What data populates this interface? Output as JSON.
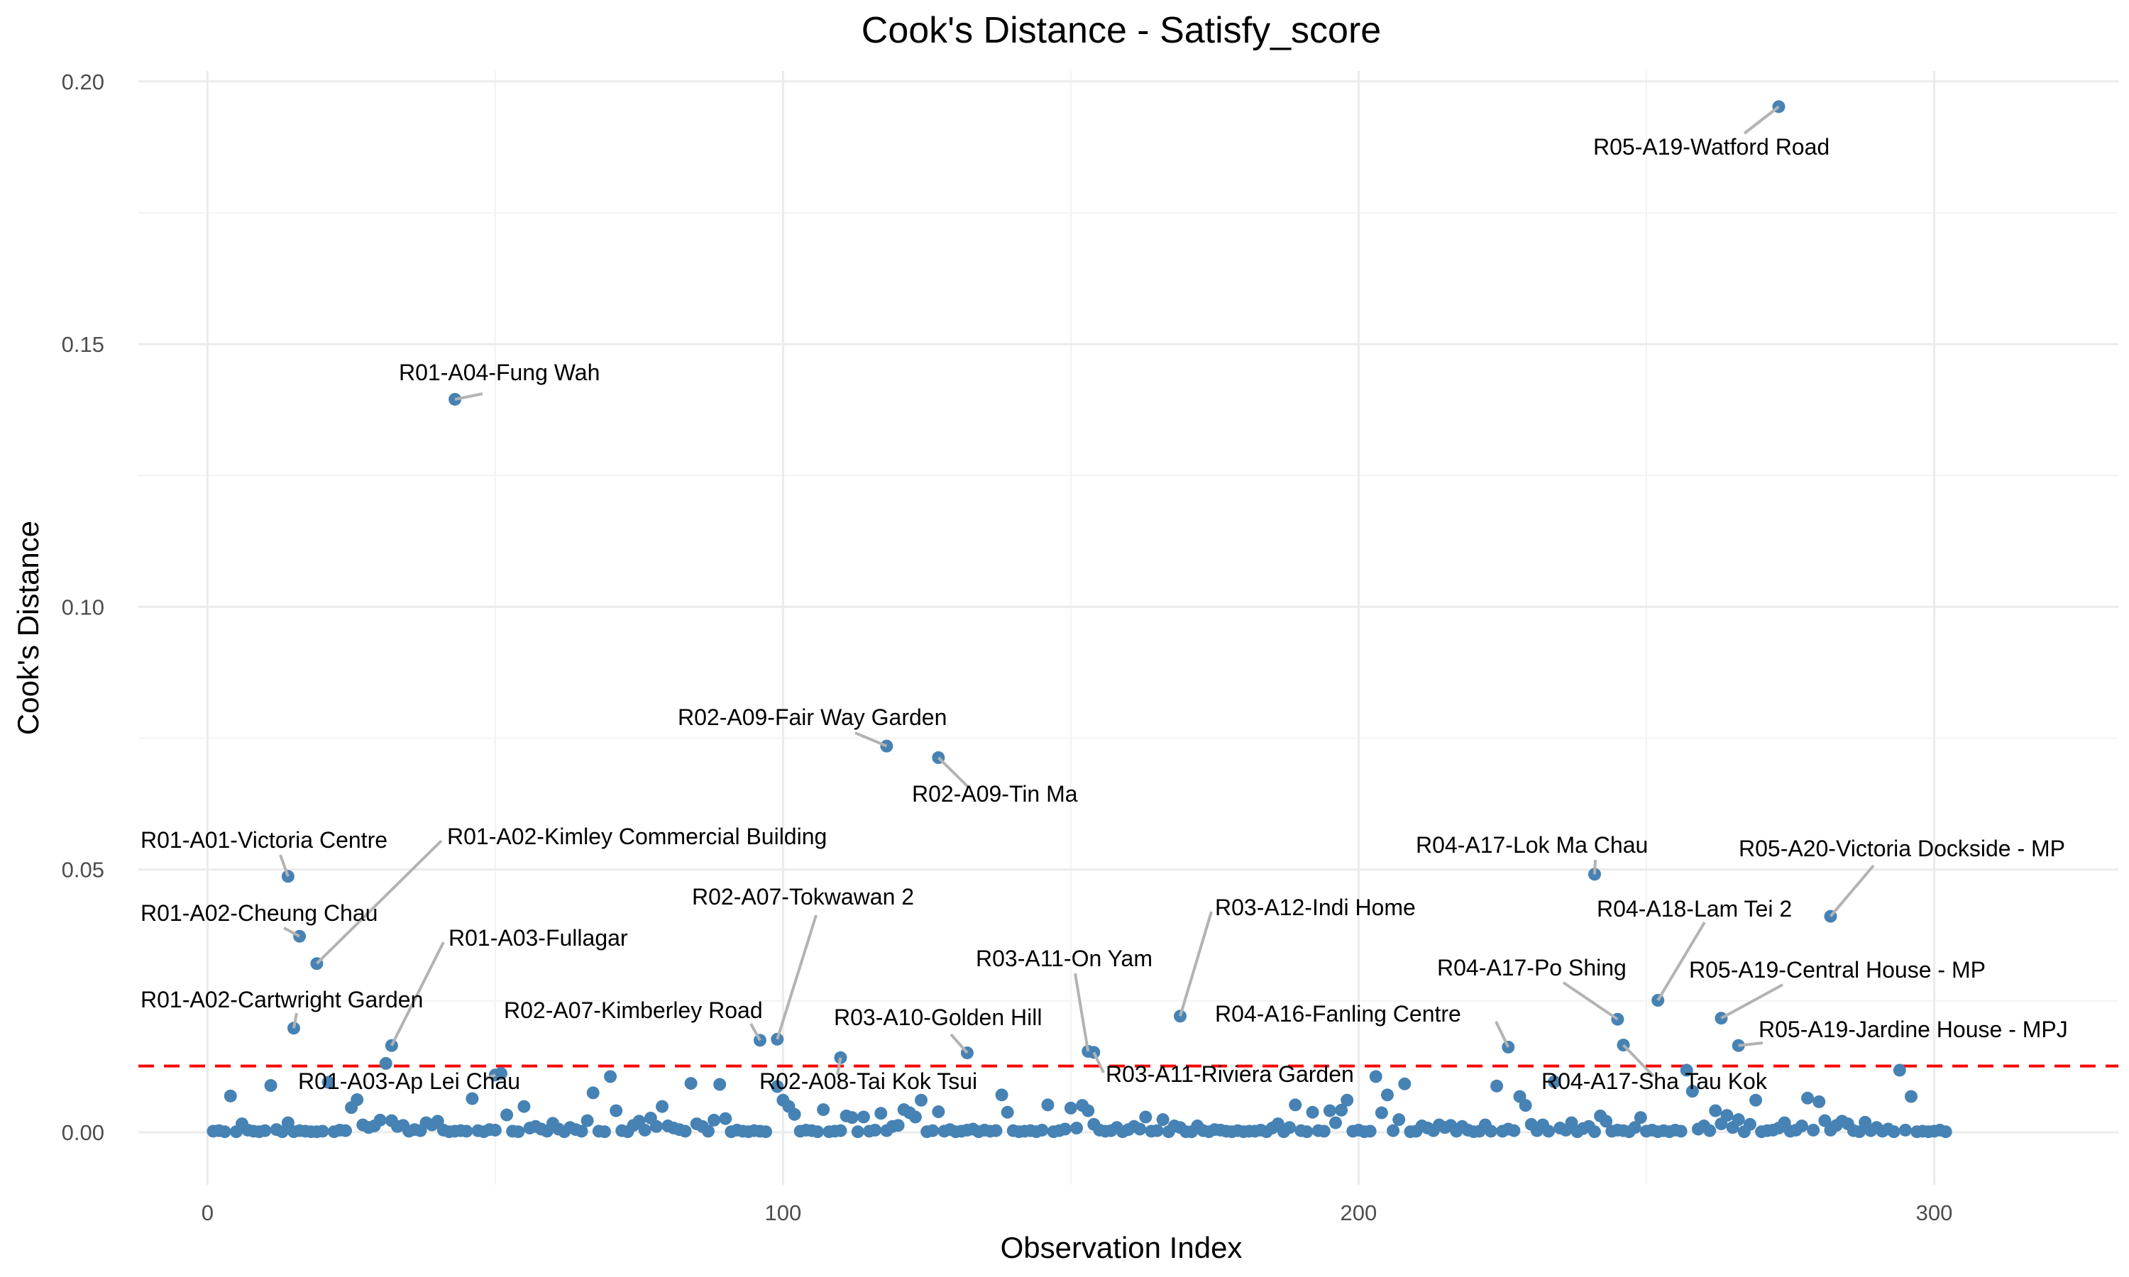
{
  "chart_data": {
    "type": "scatter",
    "title": "Cook's Distance - Satisfy_score",
    "xlabel": "Observation Index",
    "ylabel": "Cook's Distance",
    "xlim": [
      -12,
      332
    ],
    "ylim": [
      -0.01,
      0.202
    ],
    "x_ticks": [
      0,
      100,
      200,
      300
    ],
    "y_ticks": [
      0.0,
      0.05,
      0.1,
      0.15,
      0.2
    ],
    "x_tick_labels": [
      "0",
      "100",
      "200",
      "300"
    ],
    "y_tick_labels": [
      "0.00",
      "0.05",
      "0.10",
      "0.15",
      "0.20"
    ],
    "grid": true,
    "threshold": 0.0126,
    "colors": {
      "points": "#4682b4",
      "threshold": "#ff0000",
      "leader": "#b3b3b3",
      "grid": "#ebebeb"
    },
    "points": [
      [
        1,
        0.0002
      ],
      [
        2,
        0.0003
      ],
      [
        3,
        0.0001
      ],
      [
        4,
        0.0069
      ],
      [
        5,
        0.0001
      ],
      [
        6,
        0.0016
      ],
      [
        7,
        0.0004
      ],
      [
        8,
        0.0002
      ],
      [
        9,
        0.0001
      ],
      [
        10,
        0.0003
      ],
      [
        11,
        0.0089
      ],
      [
        12,
        0.0005
      ],
      [
        13,
        0.0001
      ],
      [
        14,
        0.0018
      ],
      [
        15,
        0.0001
      ],
      [
        16,
        0.0003
      ],
      [
        17,
        0.0002
      ],
      [
        18,
        0.0001
      ],
      [
        19,
        0.0001
      ],
      [
        20,
        0.0002
      ],
      [
        21,
        0.0095
      ],
      [
        22,
        0.0001
      ],
      [
        23,
        0.0004
      ],
      [
        24,
        0.0003
      ],
      [
        25,
        0.0047
      ],
      [
        26,
        0.0062
      ],
      [
        27,
        0.0014
      ],
      [
        28,
        0.0009
      ],
      [
        29,
        0.0012
      ],
      [
        30,
        0.0023
      ],
      [
        31,
        0.0131
      ],
      [
        32,
        0.0022
      ],
      [
        33,
        0.0011
      ],
      [
        34,
        0.0013
      ],
      [
        35,
        0.0002
      ],
      [
        36,
        0.0005
      ],
      [
        37,
        0.0003
      ],
      [
        38,
        0.0018
      ],
      [
        39,
        0.0014
      ],
      [
        40,
        0.0021
      ],
      [
        41,
        0.0004
      ],
      [
        42,
        0.0001
      ],
      [
        43,
        0.0002
      ],
      [
        44,
        0.0003
      ],
      [
        45,
        0.0002
      ],
      [
        46,
        0.0064
      ],
      [
        47,
        0.0003
      ],
      [
        48,
        0.0001
      ],
      [
        49,
        0.0005
      ],
      [
        50,
        0.0004
      ],
      [
        51,
        0.0112
      ],
      [
        52,
        0.0033
      ],
      [
        53,
        0.0002
      ],
      [
        54,
        0.0001
      ],
      [
        55,
        0.0049
      ],
      [
        56,
        0.0008
      ],
      [
        57,
        0.0011
      ],
      [
        58,
        0.0006
      ],
      [
        59,
        0.0002
      ],
      [
        60,
        0.0017
      ],
      [
        61,
        0.0006
      ],
      [
        62,
        0.0001
      ],
      [
        63,
        0.0009
      ],
      [
        64,
        0.0005
      ],
      [
        65,
        0.0002
      ],
      [
        66,
        0.0022
      ],
      [
        67,
        0.0075
      ],
      [
        68,
        0.0002
      ],
      [
        69,
        0.0001
      ],
      [
        70,
        0.0106
      ],
      [
        71,
        0.0041
      ],
      [
        72,
        0.0003
      ],
      [
        73,
        0.0001
      ],
      [
        74,
        0.0013
      ],
      [
        75,
        0.0021
      ],
      [
        76,
        0.0004
      ],
      [
        77,
        0.0027
      ],
      [
        78,
        0.0011
      ],
      [
        79,
        0.0049
      ],
      [
        80,
        0.0012
      ],
      [
        81,
        0.0008
      ],
      [
        82,
        0.0005
      ],
      [
        83,
        0.0002
      ],
      [
        84,
        0.0093
      ],
      [
        85,
        0.0016
      ],
      [
        86,
        0.0011
      ],
      [
        87,
        0.0002
      ],
      [
        88,
        0.0023
      ],
      [
        89,
        0.0091
      ],
      [
        90,
        0.0026
      ],
      [
        91,
        0.0001
      ],
      [
        92,
        0.0004
      ],
      [
        93,
        0.0002
      ],
      [
        94,
        0.0001
      ],
      [
        95,
        0.0003
      ],
      [
        96,
        0.0002
      ],
      [
        97,
        0.0001
      ],
      [
        99,
        0.0087
      ],
      [
        100,
        0.0061
      ],
      [
        101,
        0.0049
      ],
      [
        102,
        0.0034
      ],
      [
        103,
        0.0002
      ],
      [
        104,
        0.0004
      ],
      [
        105,
        0.0003
      ],
      [
        106,
        0.0001
      ],
      [
        107,
        0.0043
      ],
      [
        108,
        0.0001
      ],
      [
        109,
        0.0002
      ],
      [
        110,
        0.0003
      ],
      [
        111,
        0.0031
      ],
      [
        112,
        0.0028
      ],
      [
        113,
        0.0001
      ],
      [
        114,
        0.0029
      ],
      [
        115,
        0.0002
      ],
      [
        116,
        0.0004
      ],
      [
        117,
        0.0036
      ],
      [
        118,
        0.0003
      ],
      [
        119,
        0.0011
      ],
      [
        120,
        0.0013
      ],
      [
        121,
        0.0043
      ],
      [
        122,
        0.0037
      ],
      [
        123,
        0.0029
      ],
      [
        124,
        0.0061
      ],
      [
        125,
        0.0001
      ],
      [
        126,
        0.0003
      ],
      [
        127,
        0.0039
      ],
      [
        128,
        0.0002
      ],
      [
        129,
        0.0005
      ],
      [
        130,
        0.0001
      ],
      [
        131,
        0.0002
      ],
      [
        132,
        0.0004
      ],
      [
        133,
        0.0006
      ],
      [
        134,
        0.0001
      ],
      [
        135,
        0.0004
      ],
      [
        136,
        0.0002
      ],
      [
        137,
        0.0003
      ],
      [
        138,
        0.0071
      ],
      [
        139,
        0.0038
      ],
      [
        140,
        0.0003
      ],
      [
        141,
        0.0001
      ],
      [
        142,
        0.0002
      ],
      [
        143,
        0.0003
      ],
      [
        144,
        0.0001
      ],
      [
        145,
        0.0004
      ],
      [
        146,
        0.0052
      ],
      [
        147,
        0.0001
      ],
      [
        148,
        0.0003
      ],
      [
        149,
        0.0006
      ],
      [
        150,
        0.0046
      ],
      [
        151,
        0.0008
      ],
      [
        152,
        0.0051
      ],
      [
        153,
        0.0041
      ],
      [
        154,
        0.0015
      ],
      [
        155,
        0.0004
      ],
      [
        156,
        0.0002
      ],
      [
        157,
        0.0003
      ],
      [
        158,
        0.0009
      ],
      [
        159,
        0.0001
      ],
      [
        160,
        0.0005
      ],
      [
        161,
        0.0011
      ],
      [
        162,
        0.0006
      ],
      [
        163,
        0.0029
      ],
      [
        164,
        0.0002
      ],
      [
        165,
        0.0003
      ],
      [
        166,
        0.0024
      ],
      [
        167,
        0.0001
      ],
      [
        168,
        0.0012
      ],
      [
        169,
        0.0009
      ],
      [
        170,
        0.0001
      ],
      [
        171,
        0.0001
      ],
      [
        172,
        0.0012
      ],
      [
        173,
        0.0003
      ],
      [
        174,
        0.0001
      ],
      [
        175,
        0.0005
      ],
      [
        176,
        0.0004
      ],
      [
        177,
        0.0002
      ],
      [
        178,
        0.0001
      ],
      [
        179,
        0.0003
      ],
      [
        180,
        0.0001
      ],
      [
        181,
        0.0002
      ],
      [
        182,
        0.0002
      ],
      [
        183,
        0.0004
      ],
      [
        184,
        0.0001
      ],
      [
        185,
        0.0008
      ],
      [
        186,
        0.0016
      ],
      [
        187,
        0.0001
      ],
      [
        188,
        0.0009
      ],
      [
        189,
        0.0052
      ],
      [
        190,
        0.0003
      ],
      [
        191,
        0.0001
      ],
      [
        192,
        0.0038
      ],
      [
        193,
        0.0003
      ],
      [
        194,
        0.0002
      ],
      [
        195,
        0.0041
      ],
      [
        196,
        0.0018
      ],
      [
        197,
        0.0042
      ],
      [
        198,
        0.0061
      ],
      [
        199,
        0.0002
      ],
      [
        200,
        0.0004
      ],
      [
        201,
        0.0001
      ],
      [
        202,
        0.0002
      ],
      [
        203,
        0.0106
      ],
      [
        204,
        0.0037
      ],
      [
        205,
        0.0071
      ],
      [
        206,
        0.0003
      ],
      [
        207,
        0.0024
      ],
      [
        208,
        0.0092
      ],
      [
        209,
        0.0001
      ],
      [
        210,
        0.0002
      ],
      [
        211,
        0.0012
      ],
      [
        212,
        0.0008
      ],
      [
        213,
        0.0003
      ],
      [
        214,
        0.0014
      ],
      [
        215,
        0.0009
      ],
      [
        216,
        0.0013
      ],
      [
        217,
        0.0002
      ],
      [
        218,
        0.0011
      ],
      [
        219,
        0.0004
      ],
      [
        220,
        0.0001
      ],
      [
        221,
        0.0002
      ],
      [
        222,
        0.0014
      ],
      [
        223,
        0.0002
      ],
      [
        224,
        0.0088
      ],
      [
        225,
        0.0002
      ],
      [
        226,
        0.0006
      ],
      [
        227,
        0.0003
      ],
      [
        228,
        0.0068
      ],
      [
        229,
        0.0051
      ],
      [
        230,
        0.0015
      ],
      [
        231,
        0.0003
      ],
      [
        232,
        0.0014
      ],
      [
        233,
        0.0002
      ],
      [
        234,
        0.0096
      ],
      [
        235,
        0.0008
      ],
      [
        236,
        0.0004
      ],
      [
        237,
        0.0018
      ],
      [
        238,
        0.0001
      ],
      [
        239,
        0.0007
      ],
      [
        240,
        0.0011
      ],
      [
        241,
        0.0001
      ],
      [
        242,
        0.0031
      ],
      [
        243,
        0.0021
      ],
      [
        244,
        0.0002
      ],
      [
        245,
        0.0004
      ],
      [
        246,
        0.0003
      ],
      [
        247,
        0.0001
      ],
      [
        248,
        0.0009
      ],
      [
        249,
        0.0028
      ],
      [
        250,
        0.0002
      ],
      [
        251,
        0.0004
      ],
      [
        252,
        0.0001
      ],
      [
        253,
        0.0003
      ],
      [
        254,
        0.0001
      ],
      [
        255,
        0.0004
      ],
      [
        256,
        0.0002
      ],
      [
        257,
        0.0118
      ],
      [
        258,
        0.0078
      ],
      [
        259,
        0.0006
      ],
      [
        260,
        0.0012
      ],
      [
        261,
        0.0003
      ],
      [
        262,
        0.0041
      ],
      [
        263,
        0.0016
      ],
      [
        264,
        0.0032
      ],
      [
        265,
        0.0009
      ],
      [
        266,
        0.0024
      ],
      [
        267,
        0.0001
      ],
      [
        268,
        0.0015
      ],
      [
        269,
        0.0061
      ],
      [
        270,
        0.0001
      ],
      [
        271,
        0.0003
      ],
      [
        272,
        0.0004
      ],
      [
        273,
        0.0008
      ],
      [
        274,
        0.0018
      ],
      [
        275,
        0.0002
      ],
      [
        276,
        0.0004
      ],
      [
        277,
        0.0012
      ],
      [
        278,
        0.0065
      ],
      [
        279,
        0.0004
      ],
      [
        280,
        0.0058
      ],
      [
        281,
        0.0022
      ],
      [
        282,
        0.0004
      ],
      [
        283,
        0.0013
      ],
      [
        284,
        0.0021
      ],
      [
        285,
        0.0016
      ],
      [
        286,
        0.0003
      ],
      [
        287,
        0.0001
      ],
      [
        288,
        0.0019
      ],
      [
        289,
        0.0003
      ],
      [
        290,
        0.0009
      ],
      [
        291,
        0.0002
      ],
      [
        292,
        0.0006
      ],
      [
        293,
        0.0001
      ],
      [
        294,
        0.0118
      ],
      [
        295,
        0.0004
      ],
      [
        296,
        0.0068
      ],
      [
        297,
        0.0001
      ],
      [
        298,
        0.0002
      ],
      [
        299,
        0.0001
      ],
      [
        300,
        0.0002
      ],
      [
        301,
        0.0004
      ],
      [
        302,
        0.0001
      ]
    ],
    "labeled_points": [
      {
        "x": 14,
        "y": 0.0487,
        "label": "R01-A01-Victoria Centre"
      },
      {
        "x": 16,
        "y": 0.0373,
        "label": "R01-A02-Cheung Chau"
      },
      {
        "x": 19,
        "y": 0.0321,
        "label": "R01-A02-Kimley Commercial Building"
      },
      {
        "x": 15,
        "y": 0.0198,
        "label": "R01-A02-Cartwright Garden"
      },
      {
        "x": 32,
        "y": 0.0165,
        "label": "R01-A03-Fullagar"
      },
      {
        "x": 50,
        "y": 0.0109,
        "label": "R01-A03-Ap Lei Chau"
      },
      {
        "x": 43,
        "y": 0.1395,
        "label": "R01-A04-Fung Wah"
      },
      {
        "x": 96,
        "y": 0.0175,
        "label": "R02-A07-Kimberley Road"
      },
      {
        "x": 99,
        "y": 0.0177,
        "label": "R02-A07-Tokwawan 2"
      },
      {
        "x": 110,
        "y": 0.0142,
        "label": "R02-A08-Tai Kok Tsui"
      },
      {
        "x": 118,
        "y": 0.0735,
        "label": "R02-A09-Fair Way Garden"
      },
      {
        "x": 127,
        "y": 0.0713,
        "label": "R02-A09-Tin Ma"
      },
      {
        "x": 132,
        "y": 0.0151,
        "label": "R03-A10-Golden Hill"
      },
      {
        "x": 153,
        "y": 0.0154,
        "label": "R03-A11-On Yam"
      },
      {
        "x": 154,
        "y": 0.0152,
        "label": "R03-A11-Riviera Garden"
      },
      {
        "x": 169,
        "y": 0.0221,
        "label": "R03-A12-Indi Home"
      },
      {
        "x": 226,
        "y": 0.0162,
        "label": "R04-A16-Fanling Centre"
      },
      {
        "x": 241,
        "y": 0.0491,
        "label": "R04-A17-Lok Ma Chau"
      },
      {
        "x": 245,
        "y": 0.0215,
        "label": "R04-A17-Po Shing"
      },
      {
        "x": 246,
        "y": 0.0166,
        "label": "R04-A17-Sha Tau Kok"
      },
      {
        "x": 252,
        "y": 0.0251,
        "label": "R04-A18-Lam Tei 2"
      },
      {
        "x": 263,
        "y": 0.0217,
        "label": "R05-A19-Central House - MP"
      },
      {
        "x": 266,
        "y": 0.0165,
        "label": "R05-A19-Jardine House - MPJ"
      },
      {
        "x": 273,
        "y": 0.1952,
        "label": "R05-A19-Watford Road"
      },
      {
        "x": 282,
        "y": 0.0411,
        "label": "R05-A20-Victoria Dockside - MP"
      }
    ]
  }
}
